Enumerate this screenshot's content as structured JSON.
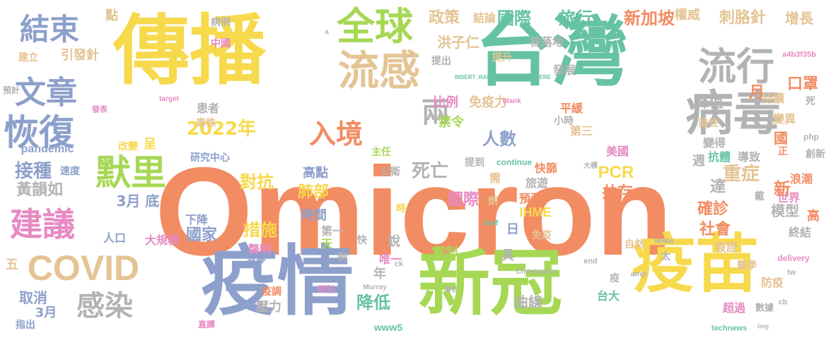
{
  "word_cloud": {
    "palette": {
      "orange": "#F28C63",
      "yellow": "#F7D94C",
      "green": "#A6D855",
      "blue": "#8DA0CB",
      "tan": "#E4C494",
      "grey": "#B3B3B3",
      "pink": "#E78AC3",
      "teal": "#66C2A5"
    },
    "words": [
      {
        "id": "omicron",
        "text": "Omicron",
        "color": "orange"
      },
      {
        "id": "chuanbo",
        "text": "傳播",
        "color": "yellow"
      },
      {
        "id": "taiwan",
        "text": "台灣",
        "color": "teal"
      },
      {
        "id": "yiqing",
        "text": "疫情",
        "color": "blue"
      },
      {
        "id": "xinguan",
        "text": "新冠",
        "color": "green"
      },
      {
        "id": "yimiao",
        "text": "疫苗",
        "color": "yellow"
      },
      {
        "id": "bingdu",
        "text": "病毒",
        "color": "grey"
      },
      {
        "id": "liugan",
        "text": "流感",
        "color": "tan"
      },
      {
        "id": "quanqiu",
        "text": "全球",
        "color": "green"
      },
      {
        "id": "liuxing",
        "text": "流行",
        "color": "grey"
      },
      {
        "id": "jieshu",
        "text": "結束",
        "color": "blue"
      },
      {
        "id": "wenzhang",
        "text": "文章",
        "color": "blue"
      },
      {
        "id": "huifu",
        "text": "恢復",
        "color": "blue"
      },
      {
        "id": "covid",
        "text": "COVID",
        "color": "tan"
      },
      {
        "id": "jianyi",
        "text": "建議",
        "color": "pink"
      },
      {
        "id": "moli",
        "text": "默里",
        "color": "green"
      },
      {
        "id": "ganran",
        "text": "感染",
        "color": "grey"
      },
      {
        "id": "rujing",
        "text": "入境",
        "color": "orange"
      },
      {
        "id": "liang",
        "text": "兩",
        "color": "grey"
      },
      {
        "id": "guoji1",
        "text": "國際",
        "color": "teal"
      },
      {
        "id": "lvxing",
        "text": "旅行",
        "color": "teal"
      },
      {
        "id": "zhengce",
        "text": "政策",
        "color": "tan"
      },
      {
        "id": "jielun",
        "text": "結論",
        "color": "tan"
      },
      {
        "id": "xinjiapo",
        "text": "新加坡",
        "color": "orange"
      },
      {
        "id": "cijizhen",
        "text": "刺胳針",
        "color": "tan"
      },
      {
        "id": "zengzhang",
        "text": "增長",
        "color": "tan"
      },
      {
        "id": "quanwei",
        "text": "權威",
        "color": "tan"
      },
      {
        "id": "dian",
        "text": "點",
        "color": "tan"
      },
      {
        "id": "kouzhao",
        "text": "口罩",
        "color": "orange"
      },
      {
        "id": "yue1",
        "text": "月",
        "color": "orange"
      },
      {
        "id": "fengzhi",
        "text": "峰值",
        "color": "grey"
      },
      {
        "id": "hongziren",
        "text": "洪子仁",
        "color": "tan"
      },
      {
        "id": "biaoli",
        "text": "比例",
        "color": "pink"
      },
      {
        "id": "mianyili",
        "text": "免疫力",
        "color": "tan"
      },
      {
        "id": "jinling",
        "text": "禁令",
        "color": "green"
      },
      {
        "id": "renshu",
        "text": "人數",
        "color": "blue"
      },
      {
        "id": "pinghuan",
        "text": "平緩",
        "color": "orange"
      },
      {
        "id": "disan",
        "text": "第三",
        "color": "tan"
      },
      {
        "id": "y2022",
        "text": "2022年",
        "color": "yellow"
      },
      {
        "id": "jiezhong",
        "text": "接種",
        "color": "blue"
      },
      {
        "id": "zhongzheng",
        "text": "重症",
        "color": "tan"
      },
      {
        "id": "huangyunru",
        "text": "黃韻如",
        "color": "grey"
      },
      {
        "id": "siwang",
        "text": "死亡",
        "color": "grey"
      },
      {
        "id": "guoji2",
        "text": "國際",
        "color": "pink"
      },
      {
        "id": "gongcun",
        "text": "共存",
        "color": "orange"
      },
      {
        "id": "pcr",
        "text": "PCR",
        "color": "yellow"
      },
      {
        "id": "duikang",
        "text": "對抗",
        "color": "yellow"
      },
      {
        "id": "feibu",
        "text": "肺部",
        "color": "yellow"
      },
      {
        "id": "gaodian",
        "text": "高點",
        "color": "blue"
      },
      {
        "id": "m3di",
        "text": "3月 底",
        "color": "blue"
      },
      {
        "id": "cuoshi",
        "text": "措施",
        "color": "yellow"
      },
      {
        "id": "shengming",
        "text": "聲明",
        "color": "pink"
      },
      {
        "id": "shijian",
        "text": "時間",
        "color": "blue"
      },
      {
        "id": "queshen",
        "text": "確診",
        "color": "orange"
      },
      {
        "id": "moxing",
        "text": "模型",
        "color": "grey"
      },
      {
        "id": "shehui",
        "text": "社會",
        "color": "orange"
      },
      {
        "id": "jiangdi",
        "text": "降低",
        "color": "teal"
      },
      {
        "id": "m3",
        "text": "3月",
        "color": "blue"
      },
      {
        "id": "quxiao",
        "text": "取消",
        "color": "blue"
      },
      {
        "id": "wu",
        "text": "五",
        "color": "tan"
      },
      {
        "id": "yalu",
        "text": "壓力",
        "color": "grey"
      },
      {
        "id": "quxian",
        "text": "曲線",
        "color": "grey"
      },
      {
        "id": "taida",
        "text": "台大",
        "color": "teal"
      },
      {
        "id": "fangyi",
        "text": "防疫",
        "color": "tan"
      },
      {
        "id": "chaoguo",
        "text": "超過",
        "color": "pink"
      },
      {
        "id": "pandemic",
        "text": "pandemic",
        "color": "blue"
      },
      {
        "id": "meiguo",
        "text": "美國",
        "color": "pink"
      },
      {
        "id": "guojia",
        "text": "國家",
        "color": "blue"
      },
      {
        "id": "xiajiang",
        "text": "下降",
        "color": "blue"
      },
      {
        "id": "daguimo",
        "text": "大規模",
        "color": "pink"
      },
      {
        "id": "renkou",
        "text": "人口",
        "color": "blue"
      },
      {
        "id": "ihme",
        "text": "IHME",
        "color": "yellow"
      },
      {
        "id": "yuce",
        "text": "預測",
        "color": "orange"
      },
      {
        "id": "lvyou",
        "text": "旅遊",
        "color": "grey"
      },
      {
        "id": "kuaishai",
        "text": "快篩",
        "color": "orange"
      },
      {
        "id": "shijie",
        "text": "世界",
        "color": "pink"
      },
      {
        "id": "langchao",
        "text": "浪潮",
        "color": "orange"
      },
      {
        "id": "bianyi",
        "text": "變異",
        "color": "tan"
      },
      {
        "id": "chixu",
        "text": "持續",
        "color": "tan"
      },
      {
        "id": "kangti",
        "text": "抗體",
        "color": "teal"
      },
      {
        "id": "daozhi",
        "text": "導致",
        "color": "grey"
      },
      {
        "id": "biande",
        "text": "變得",
        "color": "grey"
      },
      {
        "id": "chuangxin",
        "text": "創新",
        "color": "grey"
      },
      {
        "id": "yinxing",
        "text": "陰性",
        "color": "tan"
      },
      {
        "id": "jiqiandi",
        "text": "株落地",
        "color": "grey"
      },
      {
        "id": "tisheng",
        "text": "提升",
        "color": "tan"
      },
      {
        "id": "tichu",
        "text": "提出",
        "color": "grey"
      },
      {
        "id": "fazhan",
        "text": "發展",
        "color": "grey"
      },
      {
        "id": "bingli",
        "text": "病例",
        "color": "grey"
      },
      {
        "id": "zhongguo",
        "text": "中國",
        "color": "pink"
      },
      {
        "id": "jianli",
        "text": "建立",
        "color": "tan"
      },
      {
        "id": "yinfazhen",
        "text": "引發針",
        "color": "tan"
      },
      {
        "id": "huanzhe",
        "text": "患者",
        "color": "grey"
      },
      {
        "id": "duzhu",
        "text": "毒株",
        "color": "tan"
      },
      {
        "id": "gaibian",
        "text": "改變",
        "color": "yellow"
      },
      {
        "id": "cheng",
        "text": "呈",
        "color": "yellow"
      },
      {
        "id": "yanjiu",
        "text": "研究中心",
        "color": "blue"
      },
      {
        "id": "zhuren",
        "text": "主任",
        "color": "green"
      },
      {
        "id": "gongwei",
        "text": "公衛",
        "color": "grey"
      },
      {
        "id": "tidao",
        "text": "提到",
        "color": "grey"
      },
      {
        "id": "xiaoshi",
        "text": "小時",
        "color": "grey"
      },
      {
        "id": "continue",
        "text": "continue",
        "color": "teal"
      },
      {
        "id": "sudu",
        "text": "速度",
        "color": "blue"
      },
      {
        "id": "kongzhi",
        "text": "控制",
        "color": "green"
      },
      {
        "id": "shuo",
        "text": "說",
        "color": "grey"
      },
      {
        "id": "weiyi",
        "text": "唯一",
        "color": "pink"
      },
      {
        "id": "nian",
        "text": "年",
        "color": "grey"
      },
      {
        "id": "diyi",
        "text": "第一",
        "color": "grey"
      },
      {
        "id": "qiangling",
        "text": "清零",
        "color": "blue"
      },
      {
        "id": "yidiao",
        "text": "疫調",
        "color": "orange"
      },
      {
        "id": "www5",
        "text": "www5",
        "color": "teal"
      },
      {
        "id": "zhichu",
        "text": "指出",
        "color": "blue"
      },
      {
        "id": "qianzheng",
        "text": "簽證",
        "color": "tan"
      },
      {
        "id": "zhongjie",
        "text": "終結",
        "color": "grey"
      },
      {
        "id": "mianyi",
        "text": "免疫",
        "color": "tan"
      },
      {
        "id": "ri",
        "text": "日",
        "color": "blue"
      },
      {
        "id": "ju",
        "text": "具",
        "color": "grey"
      },
      {
        "id": "xin",
        "text": "新",
        "color": "orange"
      },
      {
        "id": "da",
        "text": "達",
        "color": "grey"
      },
      {
        "id": "zhou",
        "text": "週",
        "color": "grey"
      },
      {
        "id": "guo",
        "text": "國",
        "color": "orange"
      },
      {
        "id": "zheng",
        "text": "正",
        "color": "orange"
      },
      {
        "id": "si",
        "text": "死",
        "color": "grey"
      },
      {
        "id": "php",
        "text": "php",
        "color": "grey"
      },
      {
        "id": "hash",
        "text": "a4b3f35b",
        "color": "pink"
      },
      {
        "id": "gao",
        "text": "高",
        "color": "orange"
      },
      {
        "id": "dai",
        "text": "戴",
        "color": "grey"
      },
      {
        "id": "tian",
        "text": "天",
        "color": "green"
      },
      {
        "id": "li",
        "text": "例",
        "color": "grey"
      },
      {
        "id": "xu",
        "text": "需",
        "color": "tan"
      },
      {
        "id": "kuai",
        "text": "快",
        "color": "grey"
      },
      {
        "id": "shi",
        "text": "時",
        "color": "yellow"
      },
      {
        "id": "zi",
        "text": "自然",
        "color": "tan"
      },
      {
        "id": "yi",
        "text": "疫",
        "color": "grey"
      },
      {
        "id": "tai",
        "text": "太",
        "color": "grey"
      },
      {
        "id": "yixue",
        "text": "醫學",
        "color": "tan"
      },
      {
        "id": "shuju",
        "text": "數據",
        "color": "grey"
      },
      {
        "id": "yuji",
        "text": "預計",
        "color": "grey"
      },
      {
        "id": "fabiao",
        "text": "發表",
        "color": "pink"
      },
      {
        "id": "qikan",
        "text": "期刊",
        "color": "pink"
      },
      {
        "id": "zhiyi",
        "text": "直譯",
        "color": "pink"
      },
      {
        "id": "delivery",
        "text": "delivery",
        "color": "pink"
      },
      {
        "id": "technews",
        "text": "technews",
        "color": "teal"
      },
      {
        "id": "christopher",
        "text": "Christopher",
        "color": "grey"
      },
      {
        "id": "murray",
        "text": "Murray",
        "color": "grey"
      },
      {
        "id": "end",
        "text": "end",
        "color": "grey"
      },
      {
        "id": "www",
        "text": "www",
        "color": "grey"
      },
      {
        "id": "amp",
        "text": "amp",
        "color": "grey"
      },
      {
        "id": "tw",
        "text": "tw",
        "color": "grey"
      },
      {
        "id": "cb",
        "text": "cb",
        "color": "grey"
      },
      {
        "id": "href",
        "text": "href",
        "color": "teal"
      },
      {
        "id": "ck",
        "text": "ck",
        "color": "grey"
      },
      {
        "id": "target",
        "text": "target",
        "color": "pink"
      },
      {
        "id": "blank",
        "text": "_blank",
        "color": "pink"
      },
      {
        "id": "insert",
        "text": "INSERT_RANDOM_NUMBER_HERE",
        "color": "teal"
      },
      {
        "id": "img",
        "text": "img",
        "color": "grey"
      },
      {
        "id": "dabiao",
        "text": "大標",
        "color": "grey"
      },
      {
        "id": "zhuoming",
        "text": "著名",
        "color": "grey"
      },
      {
        "id": "zhizhi",
        "text": "劑",
        "color": "tan"
      },
      {
        "id": "a",
        "text": "a",
        "color": "grey"
      }
    ]
  }
}
